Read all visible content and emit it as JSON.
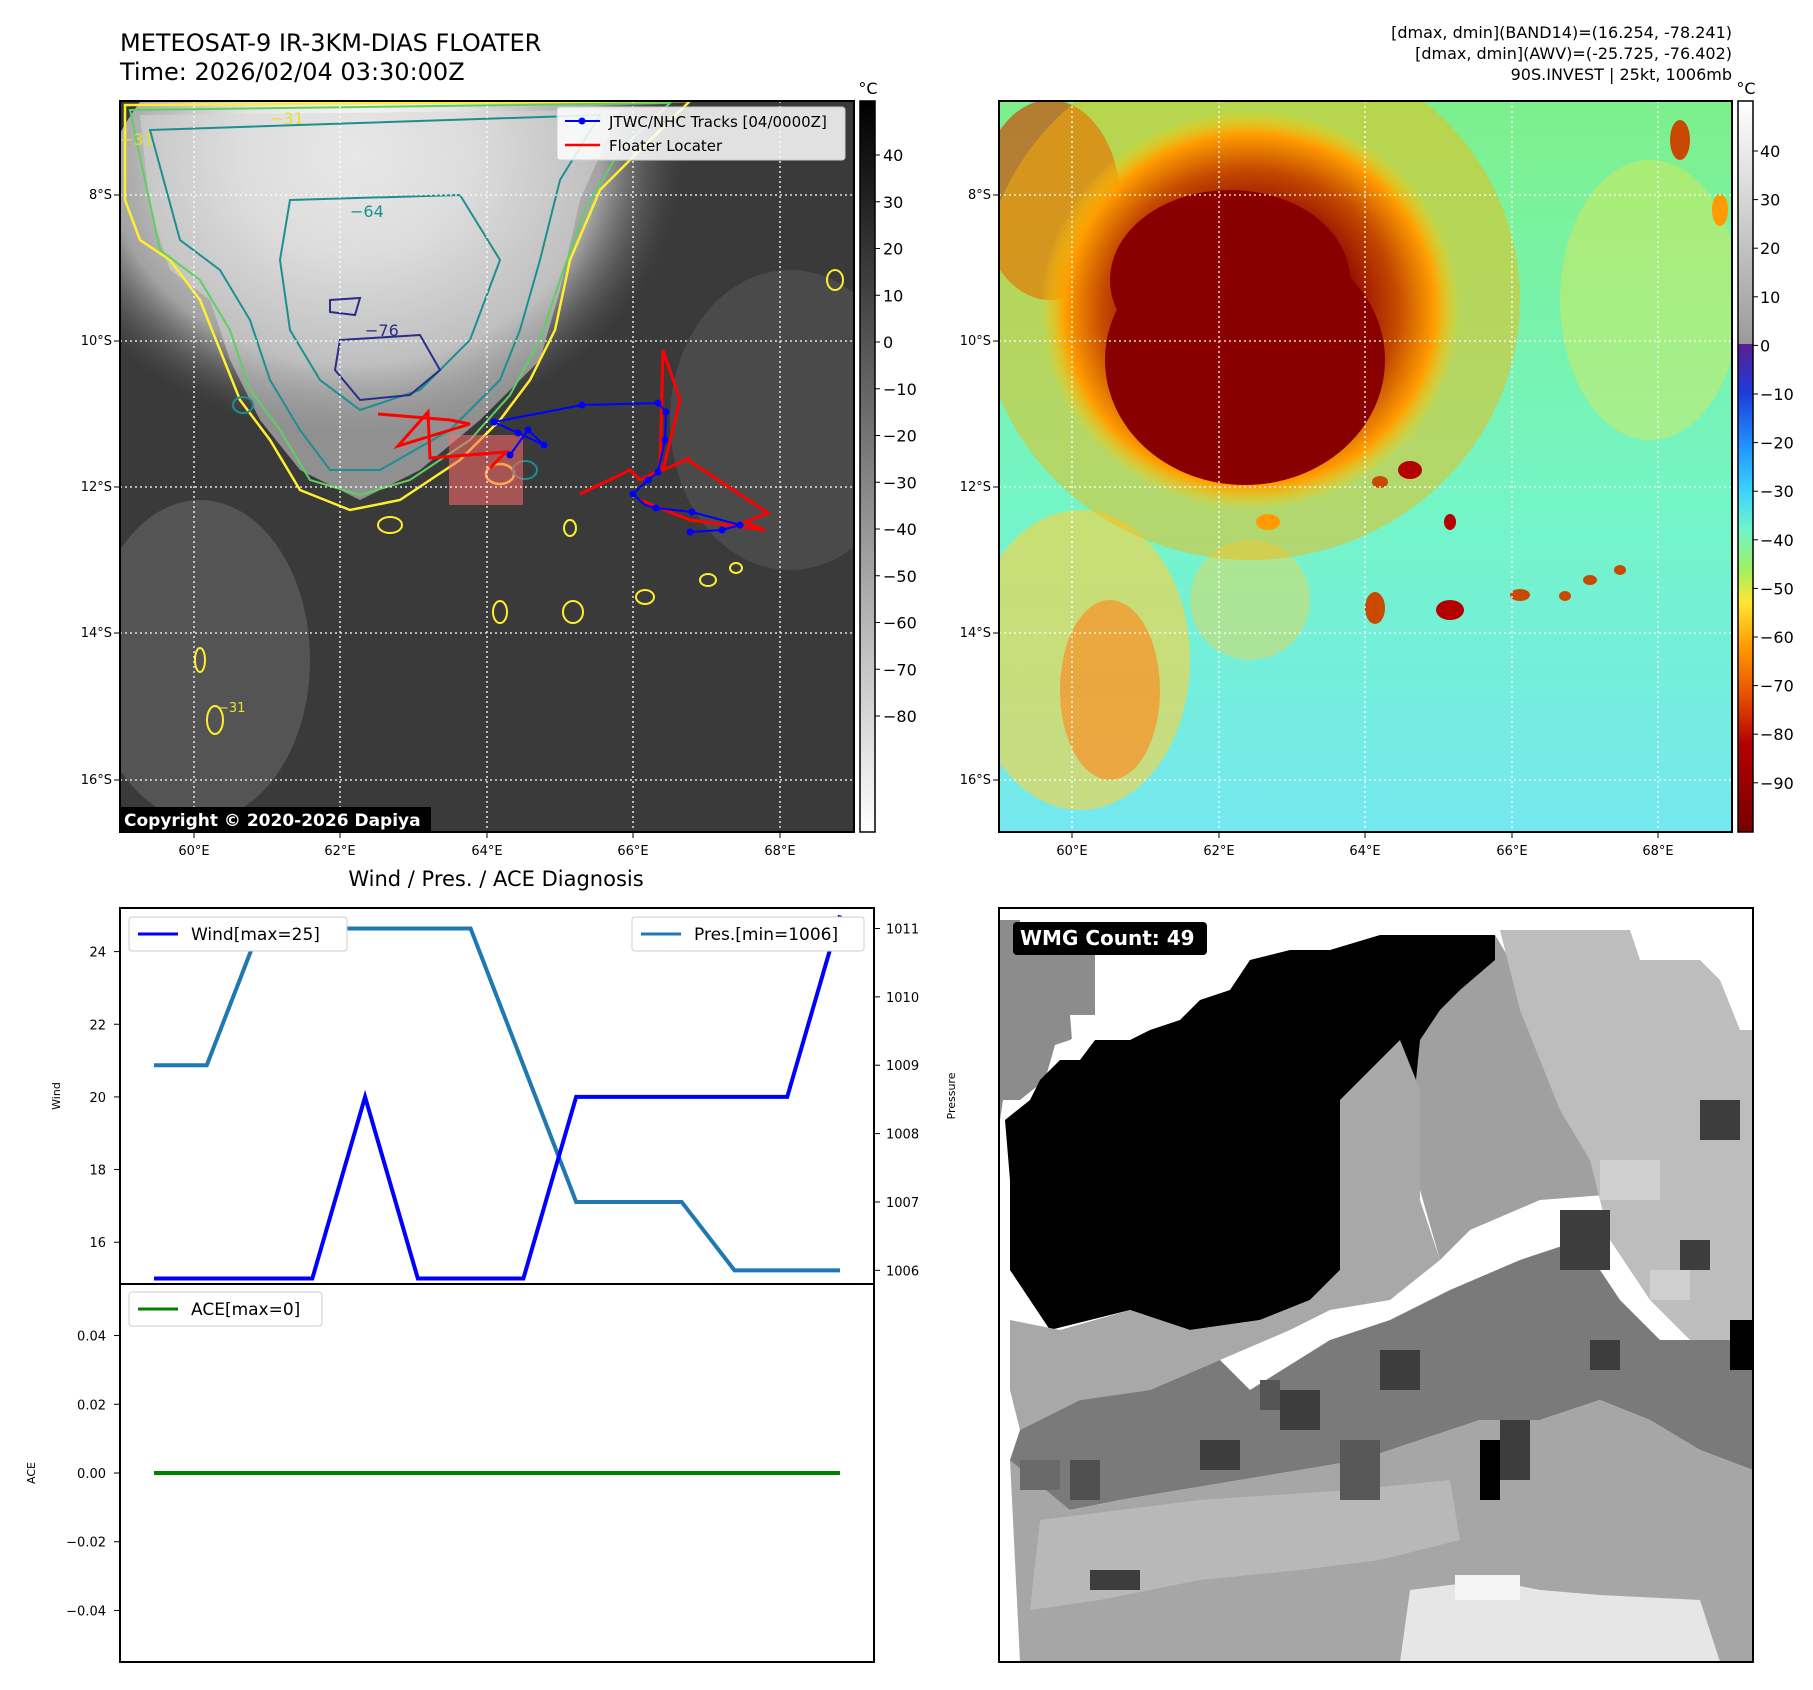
{
  "header": {
    "title_line1": "METEOSAT-9 IR-3KM-DIAS FLOATER",
    "title_line2": "Time: 2026/02/04 03:30:00Z",
    "stats_line1": "[dmax, dmin](BAND14)=(16.254, -78.241)",
    "stats_line2": "[dmax, dmin](AWV)=(-25.725, -76.402)",
    "stats_line3": "90S.INVEST | 25kt, 1006mb"
  },
  "copyright": "Copyright © 2020-2026 Dapiya",
  "colors": {
    "wind": "#0000ff",
    "pressure": "#1f77b4",
    "ace": "#008000",
    "track_jtwc": "#0000ff",
    "track_floater": "#ff0000"
  },
  "chart_data": [
    {
      "type": "heatmap",
      "name": "IR brightness temperature (grayscale) with contours",
      "xlabel": "",
      "ylabel": "",
      "x_ticks": [
        "60°E",
        "62°E",
        "64°E",
        "66°E",
        "68°E"
      ],
      "y_ticks": [
        "8°S",
        "10°S",
        "12°S",
        "14°S",
        "16°S"
      ],
      "colorbar_unit": "°C",
      "colorbar_ticks": [
        "40",
        "30",
        "20",
        "10",
        "0",
        "−10",
        "−20",
        "−30",
        "−40",
        "−50",
        "−60",
        "−70",
        "−80"
      ],
      "contour_labels": [
        "−31",
        "−31",
        "−64",
        "−76",
        "−31"
      ],
      "legend": [
        "JTWC/NHC Tracks [04/0000Z]",
        "Floater Locater"
      ]
    },
    {
      "type": "heatmap",
      "name": "IR enhanced colour",
      "x_ticks": [
        "60°E",
        "62°E",
        "64°E",
        "66°E",
        "68°E"
      ],
      "y_ticks": [
        "8°S",
        "10°S",
        "12°S",
        "14°S",
        "16°S"
      ],
      "colorbar_unit": "°C",
      "colorbar_ticks": [
        "40",
        "30",
        "20",
        "10",
        "0",
        "−10",
        "−20",
        "−30",
        "−40",
        "−50",
        "−60",
        "−70",
        "−80",
        "−90"
      ]
    },
    {
      "type": "line",
      "title": "Wind / Pres. / ACE Diagnosis",
      "ylabel": "Wind",
      "ylabel_right": "Pressure",
      "ylim": [
        14.85,
        25.2
      ],
      "ylim_right": [
        1005.8,
        1011.3
      ],
      "y_ticks": [
        "24",
        "22",
        "20",
        "18",
        "16"
      ],
      "y_ticks_right": [
        "1011",
        "1010",
        "1009",
        "1008",
        "1007",
        "1006"
      ],
      "x": [
        0,
        1,
        2,
        3,
        4,
        5,
        6,
        7,
        8,
        9,
        10,
        11,
        12,
        13
      ],
      "series": [
        {
          "name": "Wind[max=25]",
          "axis": "left",
          "values": [
            15,
            15,
            15,
            15,
            20,
            15,
            15,
            15,
            20,
            20,
            20,
            20,
            20,
            25
          ]
        },
        {
          "name": "Pres.[min=1006]",
          "axis": "right",
          "values": [
            1009,
            1009,
            1011,
            1011,
            1011,
            1011,
            1011,
            1009,
            1007,
            1007,
            1007,
            1006,
            1006,
            1006
          ]
        }
      ]
    },
    {
      "type": "line",
      "ylabel": "ACE",
      "ylim": [
        -0.055,
        0.055
      ],
      "y_ticks": [
        "0.04",
        "0.02",
        "0.00",
        "−0.02",
        "−0.04"
      ],
      "x": [
        0,
        1,
        2,
        3,
        4,
        5,
        6,
        7,
        8,
        9,
        10,
        11,
        12,
        13
      ],
      "series": [
        {
          "name": "ACE[max=0]",
          "values": [
            0,
            0,
            0,
            0,
            0,
            0,
            0,
            0,
            0,
            0,
            0,
            0,
            0,
            0
          ]
        }
      ]
    },
    {
      "type": "heatmap",
      "name": "WMG pixel count",
      "label": "WMG Count: 49"
    }
  ]
}
